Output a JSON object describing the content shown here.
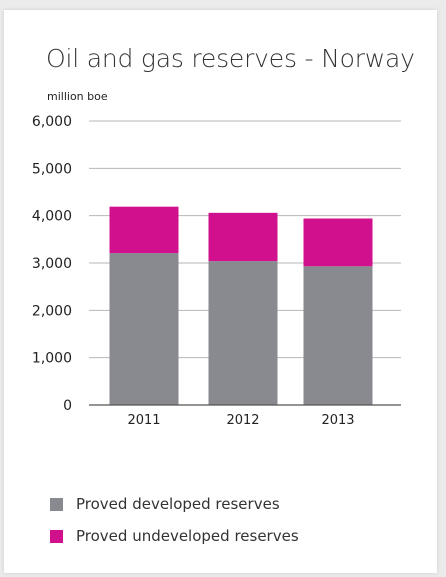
{
  "chart_data": {
    "type": "bar",
    "stacked": true,
    "title": "Oil and gas reserves - Norway",
    "ylabel": "million boe",
    "xlabel": "",
    "categories": [
      "2011",
      "2012",
      "2013"
    ],
    "ylim": [
      0,
      6000
    ],
    "yticks": [
      0,
      1000,
      2000,
      3000,
      4000,
      5000,
      6000
    ],
    "ytick_labels": [
      "0",
      "1,000",
      "2,000",
      "3,000",
      "4,000",
      "5,000",
      "6,000"
    ],
    "grid": true,
    "legend_position": "bottom",
    "series": [
      {
        "name": "Proved developed reserves",
        "color": "#888a90",
        "values": [
          3210,
          3040,
          2930
        ]
      },
      {
        "name": "Proved undeveloped reserves",
        "color": "#d0108c",
        "values": [
          980,
          1020,
          1010
        ]
      }
    ]
  },
  "legend": {
    "items": [
      {
        "label": "Proved developed reserves",
        "color": "#888a90"
      },
      {
        "label": "Proved undeveloped reserves",
        "color": "#d0108c"
      }
    ]
  }
}
